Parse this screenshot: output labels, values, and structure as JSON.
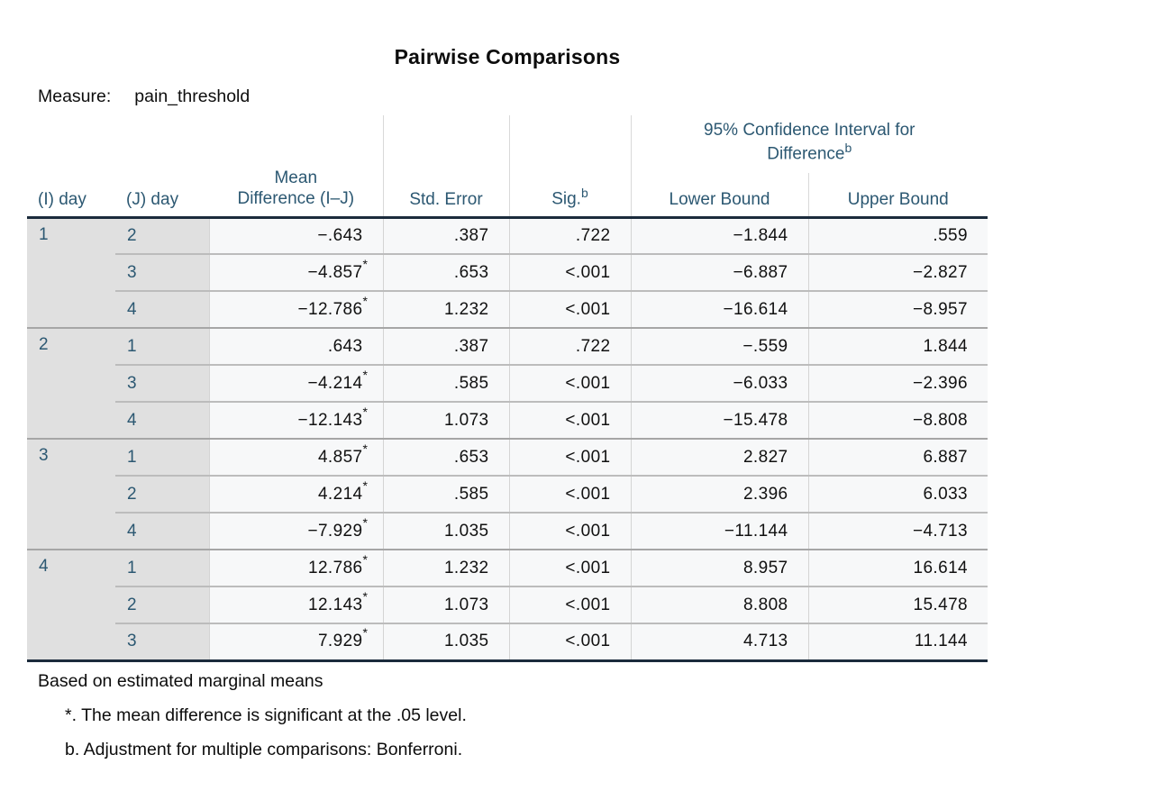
{
  "title": "Pairwise Comparisons",
  "measure": {
    "label": "Measure:",
    "value": "pain_threshold"
  },
  "table": {
    "columns": {
      "i": "(I) day",
      "j": "(J) day",
      "mean_diff": "Mean Difference (I–J)",
      "std_error": "Std. Error",
      "sig": "Sig.",
      "sig_sup": "b",
      "ci": "95% Confidence Interval for Difference",
      "ci_sup": "b",
      "lower": "Lower Bound",
      "upper": "Upper Bound"
    },
    "groups": [
      {
        "i": "1",
        "rows": [
          {
            "j": "2",
            "mean_diff": "−.643",
            "std_error": ".387",
            "sig": ".722",
            "lower": "−1.844",
            "upper": ".559"
          },
          {
            "j": "3",
            "mean_diff": "−4.857*",
            "std_error": ".653",
            "sig": "<.001",
            "lower": "−6.887",
            "upper": "−2.827"
          },
          {
            "j": "4",
            "mean_diff": "−12.786*",
            "std_error": "1.232",
            "sig": "<.001",
            "lower": "−16.614",
            "upper": "−8.957"
          }
        ]
      },
      {
        "i": "2",
        "rows": [
          {
            "j": "1",
            "mean_diff": ".643",
            "std_error": ".387",
            "sig": ".722",
            "lower": "−.559",
            "upper": "1.844"
          },
          {
            "j": "3",
            "mean_diff": "−4.214*",
            "std_error": ".585",
            "sig": "<.001",
            "lower": "−6.033",
            "upper": "−2.396"
          },
          {
            "j": "4",
            "mean_diff": "−12.143*",
            "std_error": "1.073",
            "sig": "<.001",
            "lower": "−15.478",
            "upper": "−8.808"
          }
        ]
      },
      {
        "i": "3",
        "rows": [
          {
            "j": "1",
            "mean_diff": "4.857*",
            "std_error": ".653",
            "sig": "<.001",
            "lower": "2.827",
            "upper": "6.887"
          },
          {
            "j": "2",
            "mean_diff": "4.214*",
            "std_error": ".585",
            "sig": "<.001",
            "lower": "2.396",
            "upper": "6.033"
          },
          {
            "j": "4",
            "mean_diff": "−7.929*",
            "std_error": "1.035",
            "sig": "<.001",
            "lower": "−11.144",
            "upper": "−4.713"
          }
        ]
      },
      {
        "i": "4",
        "rows": [
          {
            "j": "1",
            "mean_diff": "12.786*",
            "std_error": "1.232",
            "sig": "<.001",
            "lower": "8.957",
            "upper": "16.614"
          },
          {
            "j": "2",
            "mean_diff": "12.143*",
            "std_error": "1.073",
            "sig": "<.001",
            "lower": "8.808",
            "upper": "15.478"
          },
          {
            "j": "3",
            "mean_diff": "7.929*",
            "std_error": "1.035",
            "sig": "<.001",
            "lower": "4.713",
            "upper": "11.144"
          }
        ]
      }
    ],
    "footnotes": [
      "Based on estimated marginal means",
      "*. The mean difference is significant at the .05 level.",
      "b. Adjustment for multiple comparisons: Bonferroni."
    ]
  },
  "colors": {
    "header_text": "#2c5872",
    "label_background": "#e0e0e0",
    "data_background": "#f7f8f9",
    "thick_border": "#1b2b3c",
    "group_separator": "#a6a6a6",
    "inner_separator": "#bcbcbc",
    "column_separator": "#d4d4d4",
    "background": "#ffffff"
  }
}
